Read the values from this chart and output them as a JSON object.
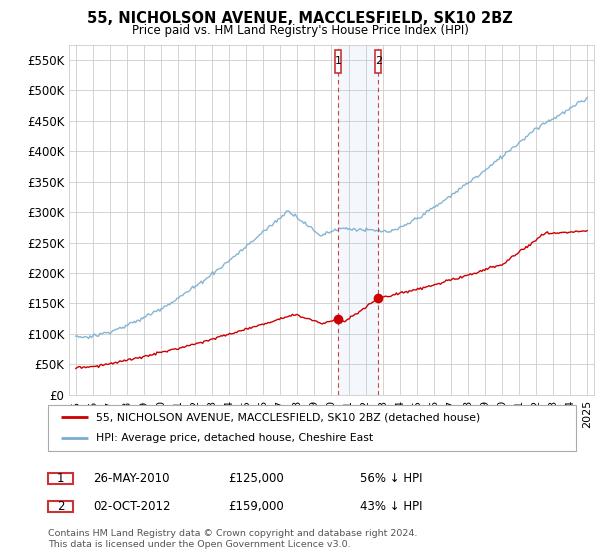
{
  "title": "55, NICHOLSON AVENUE, MACCLESFIELD, SK10 2BZ",
  "subtitle": "Price paid vs. HM Land Registry's House Price Index (HPI)",
  "legend_line1": "55, NICHOLSON AVENUE, MACCLESFIELD, SK10 2BZ (detached house)",
  "legend_line2": "HPI: Average price, detached house, Cheshire East",
  "annotation1_date": "26-MAY-2010",
  "annotation1_price": "£125,000",
  "annotation1_pct": "56% ↓ HPI",
  "annotation2_date": "02-OCT-2012",
  "annotation2_price": "£159,000",
  "annotation2_pct": "43% ↓ HPI",
  "footer": "Contains HM Land Registry data © Crown copyright and database right 2024.\nThis data is licensed under the Open Government Licence v3.0.",
  "house_color": "#cc0000",
  "hpi_color": "#7aadcf",
  "ylim_max": 575000,
  "yticks": [
    0,
    50000,
    100000,
    150000,
    200000,
    250000,
    300000,
    350000,
    400000,
    450000,
    500000,
    550000
  ],
  "ytick_labels": [
    "£0",
    "£50K",
    "£100K",
    "£150K",
    "£200K",
    "£250K",
    "£300K",
    "£350K",
    "£400K",
    "£450K",
    "£500K",
    "£550K"
  ],
  "vline1_x": 2010.38,
  "vline2_x": 2012.75,
  "sale1_x": 2010.38,
  "sale1_y": 125000,
  "sale2_x": 2012.75,
  "sale2_y": 159000,
  "xmin": 1994.6,
  "xmax": 2025.4
}
